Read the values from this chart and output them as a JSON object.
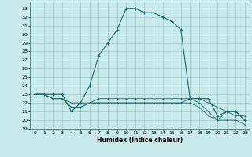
{
  "xlabel": "Humidex (Indice chaleur)",
  "bg_color": "#c8eaea",
  "grid_color": "#a0c8c8",
  "line_color": "#1a6b6b",
  "xlim": [
    -0.5,
    23.5
  ],
  "ylim": [
    19,
    33.8
  ],
  "yticks": [
    19,
    20,
    21,
    22,
    23,
    24,
    25,
    26,
    27,
    28,
    29,
    30,
    31,
    32,
    33
  ],
  "xticks": [
    0,
    1,
    2,
    3,
    4,
    5,
    6,
    7,
    8,
    9,
    10,
    11,
    12,
    13,
    14,
    15,
    16,
    17,
    18,
    19,
    20,
    21,
    22,
    23
  ],
  "series": [
    [
      23,
      23,
      23,
      23,
      21,
      22,
      24,
      27.5,
      29,
      30.5,
      33,
      33,
      32.5,
      32.5,
      32,
      31.5,
      30.5,
      22.5,
      22.5,
      22.5,
      20.5,
      21,
      21,
      20
    ],
    [
      23,
      23,
      22.5,
      22.5,
      21.5,
      21.5,
      22,
      22.5,
      22.5,
      22.5,
      22.5,
      22.5,
      22.5,
      22.5,
      22.5,
      22.5,
      22.5,
      22.5,
      22,
      21,
      20,
      21,
      21,
      20
    ],
    [
      23,
      23,
      22.5,
      22.5,
      21.5,
      21.5,
      22,
      22,
      22,
      22,
      22,
      22,
      22,
      22,
      22,
      22,
      22,
      22,
      21.5,
      20.5,
      20,
      20,
      20,
      19.5
    ],
    [
      23,
      23,
      22.5,
      22.5,
      22,
      22,
      22,
      22,
      22,
      22,
      22,
      22,
      22,
      22,
      22,
      22,
      22,
      22.5,
      22.5,
      22,
      21.5,
      21,
      20.5,
      20.5
    ]
  ]
}
